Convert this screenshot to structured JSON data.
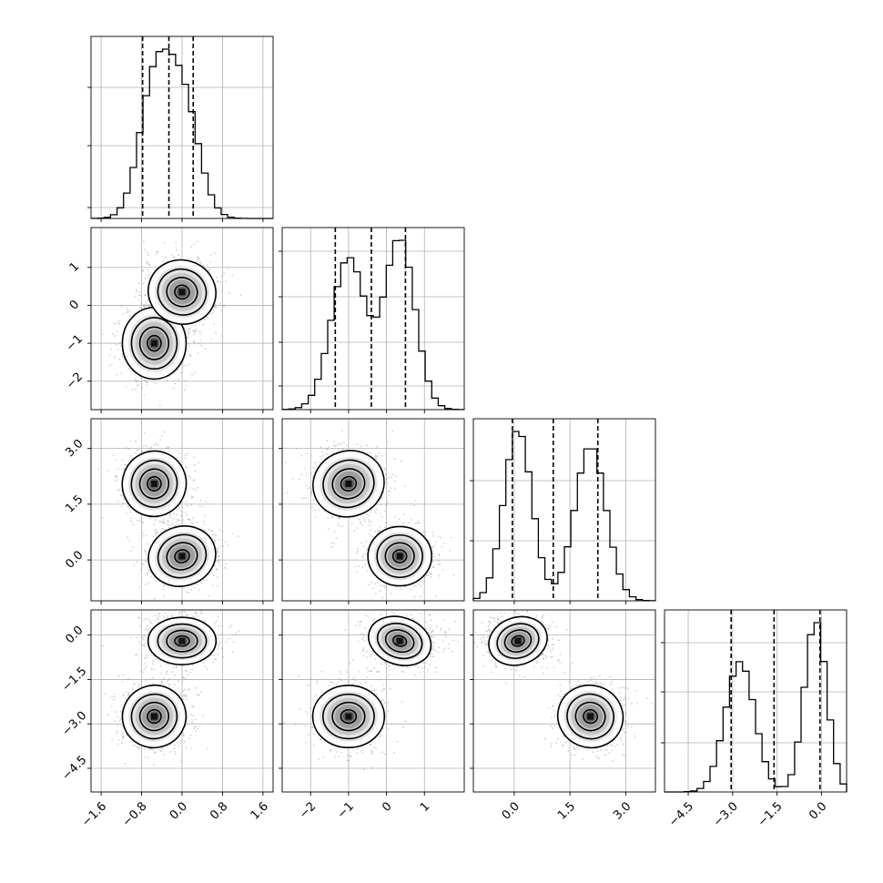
{
  "chart_data": {
    "type": "corner",
    "grid": true,
    "parameters": [
      {
        "range": [
          -1.8,
          1.8
        ],
        "ticks": [
          -1.6,
          -0.8,
          0.0,
          0.8,
          1.6
        ],
        "tick_labels": [
          "−1.6",
          "−0.8",
          "0.0",
          "0.8",
          "1.6"
        ],
        "quantiles": [
          -0.78,
          -0.26,
          0.22
        ],
        "modes": [
          {
            "mu": -0.55,
            "sd": 0.3,
            "w": 0.5
          },
          {
            "mu": 0.0,
            "sd": 0.32,
            "w": 0.5
          }
        ]
      },
      {
        "range": [
          -2.75,
          2.05
        ],
        "ticks": [
          -2,
          -1,
          0,
          1
        ],
        "tick_labels": [
          "−2",
          "−1",
          "0",
          "1"
        ],
        "quantiles": [
          -1.35,
          -0.4,
          0.5
        ],
        "modes": [
          {
            "mu": -1.0,
            "sd": 0.45,
            "w": 0.5
          },
          {
            "mu": 0.35,
            "sd": 0.4,
            "w": 0.5
          }
        ]
      },
      {
        "range": [
          -1.1,
          3.8
        ],
        "ticks": [
          0.0,
          1.5,
          3.0
        ],
        "tick_labels": [
          "0.0",
          "1.5",
          "3.0"
        ],
        "quantiles": [
          -0.05,
          1.05,
          2.25
        ],
        "modes": [
          {
            "mu": 0.1,
            "sd": 0.38,
            "w": 0.5
          },
          {
            "mu": 2.05,
            "sd": 0.42,
            "w": 0.5
          }
        ]
      },
      {
        "range": [
          -5.3,
          0.85
        ],
        "ticks": [
          -4.5,
          -3.0,
          -1.5,
          0.0
        ],
        "tick_labels": [
          "−4.5",
          "−3.0",
          "−1.5",
          "0.0"
        ],
        "quantiles": [
          -3.05,
          -1.6,
          -0.05
        ],
        "modes": [
          {
            "mu": -2.75,
            "sd": 0.5,
            "w": 0.5
          },
          {
            "mu": -0.2,
            "sd": 0.38,
            "w": 0.5
          }
        ]
      }
    ],
    "clusters": [
      {
        "weight": 0.5,
        "mean": [
          -0.55,
          -1.0,
          2.05,
          -2.75
        ],
        "sd": [
          0.3,
          0.45,
          0.42,
          0.5
        ]
      },
      {
        "weight": 0.5,
        "mean": [
          0.0,
          0.35,
          0.1,
          -0.2
        ],
        "sd": [
          0.32,
          0.4,
          0.38,
          0.38
        ]
      }
    ]
  }
}
